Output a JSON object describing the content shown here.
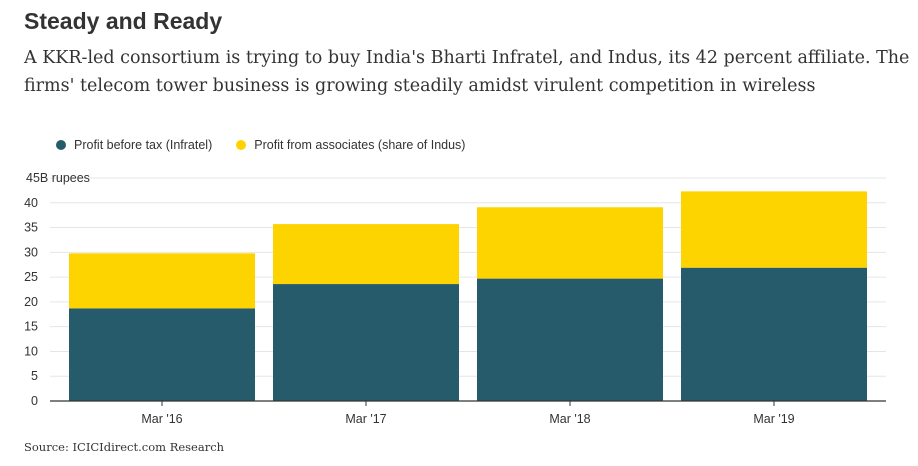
{
  "title": "Steady and Ready",
  "subtitle": "A KKR-led consortium is trying to buy India's Bharti Infratel, and Indus, its 42 percent affiliate. The firms' telecom tower business is growing steadily amidst virulent competition in wireless",
  "source": "Source: ICICIdirect.com Research",
  "colors": {
    "infratel": "#265b6c",
    "indus": "#fdd400",
    "grid": "#e6e6e6",
    "axis": "#333333"
  },
  "chart_data": {
    "type": "bar",
    "stacked": true,
    "categories": [
      "Mar '16",
      "Mar '17",
      "Mar '18",
      "Mar '19"
    ],
    "series": [
      {
        "name": "Profit before tax (Infratel)",
        "values": [
          18.7,
          23.6,
          24.7,
          26.9
        ]
      },
      {
        "name": "Profit from associates (share of Indus)",
        "values": [
          11.1,
          12.1,
          14.4,
          15.4
        ]
      }
    ],
    "ylim": [
      0,
      45
    ],
    "yticks": [
      0,
      5,
      10,
      15,
      20,
      25,
      30,
      35,
      40,
      45
    ],
    "ytick_labels": [
      "0",
      "5",
      "10",
      "15",
      "20",
      "25",
      "30",
      "35",
      "40",
      "45B rupees"
    ],
    "legend_position": "top-left"
  }
}
